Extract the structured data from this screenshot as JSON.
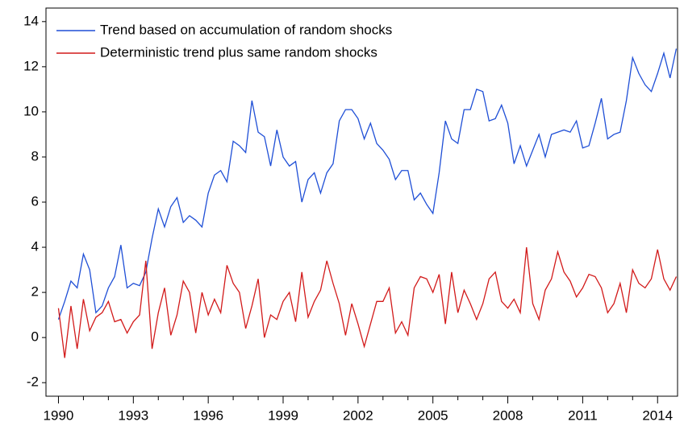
{
  "chart_data": {
    "type": "line",
    "x": [
      1990,
      1990.25,
      1990.5,
      1990.75,
      1991,
      1991.25,
      1991.5,
      1991.75,
      1992,
      1992.25,
      1992.5,
      1992.75,
      1993,
      1993.25,
      1993.5,
      1993.75,
      1994,
      1994.25,
      1994.5,
      1994.75,
      1995,
      1995.25,
      1995.5,
      1995.75,
      1996,
      1996.25,
      1996.5,
      1996.75,
      1997,
      1997.25,
      1997.5,
      1997.75,
      1998,
      1998.25,
      1998.5,
      1998.75,
      1999,
      1999.25,
      1999.5,
      1999.75,
      2000,
      2000.25,
      2000.5,
      2000.75,
      2001,
      2001.25,
      2001.5,
      2001.75,
      2002,
      2002.25,
      2002.5,
      2002.75,
      2003,
      2003.25,
      2003.5,
      2003.75,
      2004,
      2004.25,
      2004.5,
      2004.75,
      2005,
      2005.25,
      2005.5,
      2005.75,
      2006,
      2006.25,
      2006.5,
      2006.75,
      2007,
      2007.25,
      2007.5,
      2007.75,
      2008,
      2008.25,
      2008.5,
      2008.75,
      2009,
      2009.25,
      2009.5,
      2009.75,
      2010,
      2010.25,
      2010.5,
      2010.75,
      2011,
      2011.25,
      2011.5,
      2011.75,
      2012,
      2012.25,
      2012.5,
      2012.75,
      2013,
      2013.25,
      2013.5,
      2013.75,
      2014,
      2014.25,
      2014.5,
      2014.75
    ],
    "series": [
      {
        "name": "Trend based on accumulation of random shocks",
        "color": "#1f4fd6",
        "values": [
          0.8,
          1.6,
          2.5,
          2.2,
          3.7,
          3.0,
          1.1,
          1.4,
          2.2,
          2.7,
          4.1,
          2.2,
          2.4,
          2.3,
          2.9,
          4.4,
          5.7,
          4.9,
          5.8,
          6.2,
          5.1,
          5.4,
          5.2,
          4.9,
          6.4,
          7.2,
          7.4,
          6.9,
          8.7,
          8.5,
          8.2,
          10.5,
          9.1,
          8.9,
          7.6,
          9.2,
          8.0,
          7.6,
          7.8,
          6.0,
          7.0,
          7.3,
          6.4,
          7.3,
          7.7,
          9.6,
          10.1,
          10.1,
          9.7,
          8.8,
          9.5,
          8.6,
          8.3,
          7.9,
          7.0,
          7.4,
          7.4,
          6.1,
          6.4,
          5.9,
          5.5,
          7.3,
          9.6,
          8.8,
          8.6,
          10.1,
          10.1,
          11.0,
          10.9,
          9.6,
          9.7,
          10.3,
          9.5,
          7.7,
          8.5,
          7.6,
          8.3,
          9.0,
          8.0,
          9.0,
          9.1,
          9.2,
          9.1,
          9.6,
          8.4,
          8.5,
          9.5,
          10.6,
          8.8,
          9.0,
          9.1,
          10.5,
          12.4,
          11.7,
          11.2,
          10.9,
          11.7,
          12.6,
          11.5,
          12.8
        ]
      },
      {
        "name": "Deterministic trend plus same random shocks",
        "color": "#d21a1a",
        "values": [
          1.3,
          -0.9,
          1.4,
          -0.5,
          1.7,
          0.3,
          0.9,
          1.1,
          1.6,
          0.7,
          0.8,
          0.2,
          0.7,
          1.0,
          3.4,
          -0.5,
          1.1,
          2.2,
          0.1,
          1.0,
          2.5,
          2.0,
          0.2,
          2.0,
          1.0,
          1.7,
          1.1,
          3.2,
          2.4,
          2.0,
          0.4,
          1.4,
          2.6,
          0.0,
          1.0,
          0.8,
          1.6,
          2.0,
          0.7,
          2.9,
          0.9,
          1.6,
          2.1,
          3.4,
          2.4,
          1.5,
          0.1,
          1.5,
          0.6,
          -0.4,
          0.6,
          1.6,
          1.6,
          2.2,
          0.2,
          0.7,
          0.1,
          2.2,
          2.7,
          2.6,
          2.0,
          2.8,
          0.6,
          2.9,
          1.1,
          2.1,
          1.5,
          0.8,
          1.5,
          2.6,
          2.9,
          1.6,
          1.3,
          1.7,
          1.1,
          4.0,
          1.5,
          0.8,
          2.1,
          2.6,
          3.8,
          2.9,
          2.5,
          1.8,
          2.2,
          2.8,
          2.7,
          2.2,
          1.1,
          1.5,
          2.4,
          1.1,
          3.0,
          2.4,
          2.2,
          2.6,
          3.9,
          2.6,
          2.1,
          2.7
        ]
      }
    ],
    "xlim": [
      1989.5,
      2014.8
    ],
    "xticks": [
      1990,
      1993,
      1996,
      1999,
      2002,
      2005,
      2008,
      2011,
      2014
    ],
    "xminorticks": [
      1991,
      1992,
      1994,
      1995,
      1997,
      1998,
      2000,
      2001,
      2003,
      2004,
      2006,
      2007,
      2009,
      2010,
      2012,
      2013
    ],
    "ylim": [
      -2.6,
      14.6
    ],
    "yticks": [
      -2,
      0,
      2,
      4,
      6,
      8,
      10,
      12,
      14
    ],
    "legend": "top-left"
  }
}
